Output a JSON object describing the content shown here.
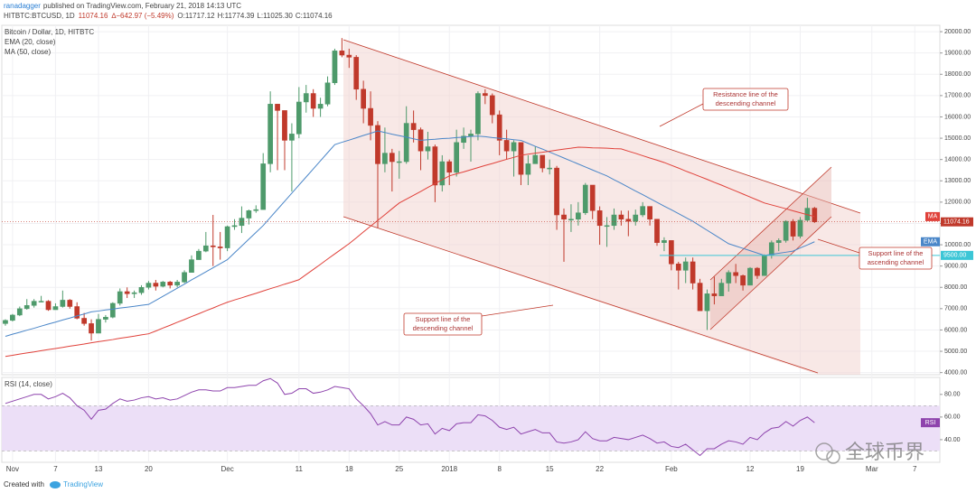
{
  "header": {
    "author": "ranadagger",
    "published": "published on TradingView.com, February 21, 2018 14:13 UTC",
    "symbol": "HITBTC:BTCUSD, 1D",
    "change": "∆−642.97 (−5.49%)",
    "ohlc": [
      "O:11717.12",
      "H:11774.39",
      "L:11025.30",
      "C:11074.16"
    ]
  },
  "annotations": [
    {
      "lines": [
        "Resistance line of the",
        "descending channel"
      ]
    },
    {
      "lines": [
        "Support line of the",
        "descending channel"
      ]
    },
    {
      "lines": [
        "Support line of the",
        "ascending channel"
      ]
    }
  ],
  "footer": {
    "created": "Created with",
    "brand": "TradingView"
  },
  "watermark": "全球币界",
  "chart_data": [
    {
      "type": "candlestick",
      "title": "Bitcoin / Dollar, 1D, HITBTC",
      "up_color": "#4e9a6b",
      "down_color": "#c0392b",
      "grid": true,
      "categories": [
        null,
        "Nov",
        null,
        null,
        null,
        null,
        null,
        "7",
        null,
        null,
        null,
        null,
        null,
        "13",
        null,
        null,
        null,
        null,
        null,
        null,
        "20",
        null,
        null,
        null,
        null,
        null,
        null,
        null,
        null,
        null,
        null,
        "Dec",
        null,
        null,
        null,
        null,
        null,
        null,
        null,
        null,
        null,
        "11",
        null,
        null,
        null,
        null,
        null,
        null,
        "18",
        null,
        null,
        null,
        null,
        null,
        null,
        "25",
        null,
        null,
        null,
        null,
        null,
        null,
        "2018",
        null,
        null,
        null,
        null,
        null,
        null,
        "8",
        null,
        null,
        null,
        null,
        null,
        null,
        "15",
        null,
        null,
        null,
        null,
        null,
        null,
        "22",
        null,
        null,
        null,
        null,
        null,
        null,
        null,
        null,
        null,
        "Feb",
        null,
        null,
        null,
        null,
        null,
        null,
        null,
        null,
        null,
        null,
        "12",
        null,
        null,
        null,
        null,
        null,
        null,
        "19",
        null,
        null,
        null,
        null,
        null,
        null,
        null,
        null,
        null,
        "Mar",
        null,
        null,
        null,
        null,
        null,
        "7",
        null,
        null,
        null
      ],
      "open": [
        6300,
        6450,
        6700,
        7000,
        7150,
        7350,
        7350,
        6950,
        7100,
        7400,
        7100,
        6550,
        6300,
        5850,
        6500,
        6600,
        7250,
        7800,
        7700,
        7750,
        8000,
        8200,
        8050,
        8250,
        8100,
        8250,
        8700,
        9300,
        9700,
        9950,
        9900,
        9850,
        10850,
        10900,
        11250,
        11600,
        11650,
        13800,
        16600,
        16300,
        14900,
        15200,
        16700,
        17100,
        16400,
        16600,
        17600,
        19100,
        18900,
        18800,
        17300,
        16400,
        15600,
        13800,
        14300,
        13900,
        13900,
        15700,
        15400,
        14400,
        14600,
        12800,
        13900,
        13400,
        14800,
        15100,
        15200,
        17100,
        17000,
        16100,
        14900,
        14400,
        14800,
        13300,
        13800,
        14200,
        13600,
        13600,
        11400,
        11200,
        11200,
        11500,
        12800,
        11600,
        10900,
        10900,
        11400,
        11200,
        11100,
        11400,
        11800,
        11200,
        10100,
        10200,
        9100,
        8800,
        9200,
        8200,
        6900,
        7700,
        7600,
        8200,
        8700,
        8550,
        8100,
        8900,
        8550,
        9500,
        10100,
        10200,
        11100,
        10400,
        11150,
        11717.12,
        null,
        null,
        null,
        null,
        null,
        null,
        null,
        null,
        null,
        null,
        null,
        null,
        null,
        null,
        null,
        null,
        null
      ],
      "high": [
        6500,
        6750,
        7100,
        7450,
        7450,
        7600,
        7400,
        7250,
        7850,
        7450,
        7300,
        6800,
        6500,
        6750,
        6700,
        7300,
        7950,
        8000,
        7850,
        8100,
        8300,
        8350,
        8300,
        8300,
        8350,
        8800,
        9500,
        9800,
        10600,
        11400,
        10600,
        10900,
        11200,
        11800,
        11650,
        11850,
        14300,
        17200,
        16600,
        16300,
        15700,
        17400,
        17500,
        17300,
        16900,
        17900,
        19200,
        19700,
        19200,
        18900,
        17700,
        17200,
        15800,
        15500,
        14500,
        14400,
        16500,
        16300,
        15500,
        15300,
        14700,
        14200,
        14000,
        15400,
        15500,
        15400,
        17200,
        17300,
        17100,
        16300,
        15400,
        14900,
        14800,
        14200,
        14600,
        14200,
        14000,
        13700,
        11700,
        11900,
        12000,
        12900,
        12800,
        11800,
        11300,
        11700,
        11600,
        11600,
        11650,
        12000,
        11800,
        11200,
        10350,
        10200,
        9200,
        9400,
        9400,
        8400,
        7900,
        8500,
        8400,
        8800,
        9100,
        8600,
        8950,
        8950,
        9550,
        10200,
        10300,
        11150,
        11200,
        11300,
        12200,
        11774.39,
        null,
        null,
        null,
        null,
        null,
        null,
        null,
        null,
        null,
        null,
        null,
        null,
        null,
        null,
        null,
        null,
        null
      ],
      "low": [
        6200,
        6400,
        6650,
        6950,
        7050,
        7300,
        6900,
        6950,
        7050,
        7000,
        6500,
        6200,
        5500,
        5850,
        6350,
        6550,
        7150,
        7500,
        7500,
        7650,
        7900,
        7850,
        8000,
        7950,
        8000,
        8200,
        8700,
        9300,
        9650,
        9000,
        9300,
        9700,
        10700,
        10550,
        10950,
        11500,
        11650,
        13400,
        13500,
        13500,
        12500,
        15000,
        16200,
        16000,
        16000,
        16500,
        17500,
        18800,
        18300,
        16800,
        15700,
        14900,
        10800,
        13400,
        12500,
        13100,
        13800,
        14800,
        13500,
        14000,
        12000,
        12500,
        12800,
        13200,
        14500,
        13900,
        14900,
        16600,
        15700,
        14200,
        14000,
        13200,
        12800,
        12800,
        13800,
        13400,
        13300,
        10700,
        9200,
        10600,
        10900,
        11400,
        11200,
        10000,
        9900,
        10700,
        10900,
        10400,
        10900,
        11300,
        10900,
        9950,
        9700,
        8800,
        7900,
        8200,
        7900,
        6900,
        6000,
        7200,
        7600,
        7800,
        8200,
        7850,
        8100,
        8400,
        8550,
        9350,
        9700,
        10100,
        10200,
        10300,
        11100,
        11025.3,
        null,
        null,
        null,
        null,
        null,
        null,
        null,
        null,
        null,
        null,
        null,
        null,
        null,
        null,
        null,
        null,
        null
      ],
      "close": [
        6450,
        6700,
        7000,
        7150,
        7350,
        7350,
        6950,
        7100,
        7400,
        7100,
        6550,
        6300,
        5850,
        6500,
        6600,
        7250,
        7800,
        7700,
        7750,
        8000,
        8200,
        8050,
        8250,
        8100,
        8250,
        8700,
        9300,
        9700,
        9950,
        9900,
        9850,
        10850,
        10900,
        11250,
        11600,
        11650,
        13800,
        16600,
        16300,
        14900,
        15200,
        16700,
        17100,
        16400,
        16600,
        17600,
        19100,
        18900,
        18800,
        17300,
        16400,
        15600,
        13800,
        14300,
        13900,
        13900,
        15700,
        15400,
        14400,
        14600,
        12800,
        13900,
        13400,
        14800,
        15100,
        15200,
        17100,
        17000,
        16100,
        14900,
        14400,
        14800,
        13300,
        13800,
        14200,
        13600,
        13600,
        11400,
        11200,
        11200,
        11500,
        12800,
        11600,
        10900,
        10900,
        11400,
        11200,
        11100,
        11400,
        11800,
        11200,
        10100,
        10200,
        9100,
        8800,
        9200,
        8200,
        6900,
        7700,
        7600,
        8200,
        8700,
        8550,
        8100,
        8900,
        8550,
        9500,
        10100,
        10200,
        11100,
        10400,
        11150,
        11717.12,
        11074.16,
        null,
        null,
        null,
        null,
        null,
        null,
        null,
        null,
        null,
        null,
        null,
        null,
        null,
        null,
        null,
        null,
        null
      ],
      "lines": [
        {
          "name": "EMA (20, close)",
          "tag": "EMA",
          "color": "#4a86c8",
          "values": [
            5700,
            5800,
            5890,
            5990,
            6080,
            6180,
            6280,
            6370,
            6470,
            6560,
            6660,
            6750,
            6850,
            6890,
            6940,
            6980,
            7030,
            7070,
            7110,
            7160,
            7200,
            7390,
            7580,
            7770,
            7960,
            8150,
            8350,
            8540,
            8730,
            8920,
            9110,
            9300,
            9620,
            9940,
            10260,
            10580,
            10900,
            11280,
            11660,
            12040,
            12420,
            12800,
            13180,
            13560,
            13940,
            14320,
            14700,
            14810,
            14910,
            15020,
            15130,
            15230,
            15340,
            15270,
            15190,
            15120,
            15050,
            14970,
            14900,
            14930,
            14950,
            14980,
            15000,
            15030,
            15050,
            15080,
            15100,
            15070,
            15030,
            15000,
            14970,
            14930,
            14900,
            14760,
            14620,
            14490,
            14350,
            14210,
            14070,
            13930,
            13790,
            13650,
            13510,
            13370,
            13230,
            13050,
            12880,
            12700,
            12520,
            12350,
            12170,
            11990,
            11810,
            11640,
            11460,
            11280,
            11100,
            10890,
            10680,
            10470,
            10260,
            10050,
            9940,
            9830,
            9720,
            9610,
            9500,
            9550,
            9600,
            9650,
            9700,
            9850,
            9990,
            10140,
            null,
            null,
            null,
            null,
            null,
            null,
            null,
            null,
            null,
            null,
            null,
            null,
            null,
            null,
            null,
            null,
            null
          ]
        },
        {
          "name": "MA (50, close)",
          "tag": "MA",
          "color": "#e0413a",
          "values": [
            4760,
            4810,
            4870,
            4920,
            4970,
            5030,
            5080,
            5130,
            5180,
            5240,
            5290,
            5340,
            5400,
            5450,
            5500,
            5550,
            5610,
            5660,
            5710,
            5770,
            5820,
            5950,
            6090,
            6220,
            6360,
            6490,
            6630,
            6760,
            6900,
            7030,
            7170,
            7300,
            7410,
            7510,
            7620,
            7720,
            7830,
            7940,
            8040,
            8150,
            8250,
            8360,
            8600,
            8840,
            9080,
            9330,
            9570,
            9810,
            10050,
            10320,
            10600,
            10870,
            11140,
            11410,
            11690,
            11960,
            12140,
            12320,
            12500,
            12690,
            12870,
            13050,
            13230,
            13330,
            13420,
            13520,
            13620,
            13720,
            13810,
            13910,
            14010,
            14100,
            14200,
            14250,
            14300,
            14340,
            14390,
            14440,
            14490,
            14530,
            14580,
            14570,
            14550,
            14540,
            14530,
            14510,
            14500,
            14390,
            14290,
            14180,
            14070,
            13970,
            13860,
            13730,
            13600,
            13460,
            13330,
            13200,
            13070,
            12930,
            12800,
            12660,
            12520,
            12380,
            12240,
            12100,
            11960,
            11870,
            11780,
            11690,
            11590,
            11500,
            11410,
            11320,
            null,
            null,
            null,
            null,
            null,
            null,
            null,
            null,
            null,
            null,
            null,
            null,
            null,
            null,
            null,
            null,
            null
          ]
        }
      ],
      "levels": [
        {
          "value": 9500,
          "label": "9500.00",
          "color": "#3cc6d6"
        }
      ],
      "ylim": [
        3900,
        20300
      ],
      "yticks": [
        {
          "value": 4000,
          "label": "4000.00"
        },
        {
          "value": 5000,
          "label": "5000.00"
        },
        {
          "value": 6000,
          "label": "6000.00"
        },
        {
          "value": 7000,
          "label": "7000.00"
        },
        {
          "value": 8000,
          "label": "8000.00"
        },
        {
          "value": 9000,
          "label": "9000.00"
        },
        {
          "value": 10000,
          "label": "10000.00"
        },
        {
          "value": 11000,
          "label": "11000.00"
        },
        {
          "value": 12000,
          "label": "12000.00"
        },
        {
          "value": 13000,
          "label": "13000.00"
        },
        {
          "value": 14000,
          "label": "14000.00"
        },
        {
          "value": 15000,
          "label": "15000.00"
        },
        {
          "value": 16000,
          "label": "16000.00"
        },
        {
          "value": 17000,
          "label": "17000.00"
        },
        {
          "value": 18000,
          "label": "18000.00"
        },
        {
          "value": 19000,
          "label": "19000.00"
        },
        {
          "value": 20000,
          "label": "20000.00"
        }
      ]
    },
    {
      "type": "line",
      "title": "RSI (14, close)",
      "tag": "RSI",
      "color": "#8e44ad",
      "band_color": "#ecdff7",
      "bands": [
        30,
        70
      ],
      "values": [
        72,
        74,
        76,
        78,
        80,
        80,
        76,
        78,
        81,
        77,
        70,
        66,
        58,
        66,
        67,
        72,
        76,
        74,
        75,
        77,
        78,
        76,
        77,
        75,
        76,
        79,
        82,
        84,
        84,
        83,
        83,
        86,
        86,
        87,
        88,
        88,
        92,
        94,
        90,
        80,
        81,
        85,
        85,
        81,
        82,
        84,
        87,
        86,
        85,
        76,
        70,
        63,
        53,
        56,
        53,
        53,
        60,
        58,
        53,
        54,
        45,
        50,
        48,
        54,
        55,
        55,
        62,
        61,
        57,
        51,
        49,
        51,
        45,
        47,
        49,
        46,
        46,
        38,
        37,
        38,
        40,
        47,
        41,
        39,
        39,
        42,
        41,
        40,
        42,
        44,
        41,
        37,
        38,
        34,
        33,
        36,
        31,
        26,
        32,
        32,
        36,
        39,
        38,
        36,
        42,
        40,
        46,
        50,
        51,
        56,
        52,
        57,
        60,
        55,
        null,
        null,
        null,
        null,
        null,
        null,
        null,
        null,
        null,
        null,
        null,
        null,
        null,
        null,
        null,
        null,
        null
      ],
      "ylim": [
        20,
        95
      ],
      "yticks": [
        {
          "value": 80,
          "label": "80.00"
        },
        {
          "value": 60,
          "label": "60.00"
        },
        {
          "value": 40,
          "label": "40.00"
        }
      ]
    }
  ]
}
